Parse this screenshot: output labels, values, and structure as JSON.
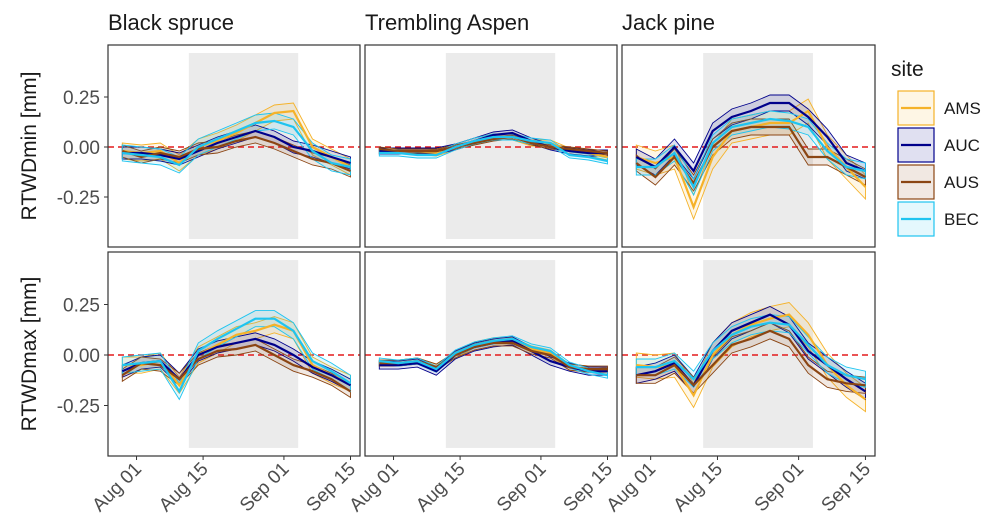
{
  "chart_data": {
    "type": "line",
    "columns": [
      "Black spruce",
      "Trembling Aspen",
      "Jack pine"
    ],
    "rows": [
      "RTWDmin [mm]",
      "RTWDmax [mm]"
    ],
    "x": [
      "Jul 29",
      "Aug 02",
      "Aug 06",
      "Aug 10",
      "Aug 14",
      "Aug 18",
      "Aug 22",
      "Aug 26",
      "Aug 30",
      "Sep 03",
      "Sep 07",
      "Sep 11",
      "Sep 15"
    ],
    "xlim": [
      "Jul 26",
      "Sep 17"
    ],
    "xticks": [
      "Aug 01",
      "Aug 15",
      "Sep 01",
      "Sep 15"
    ],
    "ylim": [
      -0.5,
      0.51
    ],
    "yticks": [
      0.25,
      {
        "value": 0,
        "label": "0.00"
      },
      -0.25
    ],
    "shade": {
      "x": [
        "Aug 12",
        "Sep 04"
      ],
      "y": [
        -0.46,
        0.47
      ],
      "color": "#ebebeb"
    },
    "hline": 0,
    "hline_color": "#e31a1c",
    "legend_title": "site",
    "legend": [
      {
        "name": "AMS",
        "color": "#f5b229"
      },
      {
        "name": "AUC",
        "color": "#00008b"
      },
      {
        "name": "AUS",
        "color": "#8b4513"
      },
      {
        "name": "BEC",
        "color": "#1ec4f0"
      }
    ],
    "panels": [
      {
        "row": 0,
        "col": 0,
        "series": [
          {
            "values": [
              -0.02,
              -0.03,
              -0.02,
              -0.08,
              0.0,
              0.03,
              0.07,
              0.12,
              0.17,
              0.18,
              0.0,
              -0.05,
              -0.1
            ],
            "error": [
              0.04,
              0.04,
              0.04,
              0.04,
              0.04,
              0.04,
              0.04,
              0.04,
              0.04,
              0.04,
              0.04,
              0.04,
              0.04
            ]
          },
          {
            "values": [
              -0.03,
              -0.03,
              -0.04,
              -0.06,
              -0.02,
              0.02,
              0.05,
              0.08,
              0.05,
              0.0,
              -0.02,
              -0.05,
              -0.08
            ],
            "error": [
              0.03,
              0.03,
              0.03,
              0.03,
              0.03,
              0.03,
              0.03,
              0.03,
              0.03,
              0.03,
              0.03,
              0.03,
              0.03
            ]
          },
          {
            "values": [
              -0.02,
              -0.05,
              -0.03,
              -0.05,
              -0.01,
              0.0,
              0.03,
              0.05,
              0.02,
              -0.02,
              -0.06,
              -0.08,
              -0.12
            ],
            "error": [
              0.03,
              0.03,
              0.03,
              0.03,
              0.03,
              0.03,
              0.03,
              0.03,
              0.03,
              0.03,
              0.03,
              0.03,
              0.03
            ]
          },
          {
            "values": [
              -0.03,
              -0.04,
              -0.05,
              -0.09,
              0.0,
              0.04,
              0.08,
              0.12,
              0.13,
              0.1,
              -0.02,
              -0.08,
              -0.1
            ],
            "error": [
              0.04,
              0.04,
              0.04,
              0.04,
              0.04,
              0.04,
              0.04,
              0.04,
              0.04,
              0.04,
              0.04,
              0.04,
              0.04
            ]
          }
        ]
      },
      {
        "row": 0,
        "col": 1,
        "series": [
          {
            "values": [
              -0.02,
              -0.02,
              -0.02,
              -0.03,
              0.0,
              0.03,
              0.05,
              0.05,
              0.02,
              0.02,
              -0.02,
              -0.03,
              -0.05
            ],
            "error": [
              0.015,
              0.015,
              0.015,
              0.015,
              0.015,
              0.015,
              0.015,
              0.015,
              0.015,
              0.015,
              0.015,
              0.015,
              0.015
            ]
          },
          {
            "values": [
              -0.02,
              -0.02,
              -0.02,
              -0.02,
              0.0,
              0.03,
              0.06,
              0.07,
              0.03,
              0.0,
              -0.02,
              -0.03,
              -0.03
            ],
            "error": [
              0.015,
              0.015,
              0.015,
              0.015,
              0.015,
              0.015,
              0.015,
              0.015,
              0.015,
              0.015,
              0.015,
              0.015,
              0.015
            ]
          },
          {
            "values": [
              -0.01,
              -0.02,
              -0.02,
              -0.02,
              0.0,
              0.02,
              0.04,
              0.05,
              0.02,
              0.0,
              -0.01,
              -0.02,
              -0.03
            ],
            "error": [
              0.01,
              0.01,
              0.01,
              0.01,
              0.01,
              0.01,
              0.01,
              0.01,
              0.01,
              0.01,
              0.01,
              0.01,
              0.01
            ]
          },
          {
            "values": [
              -0.03,
              -0.03,
              -0.04,
              -0.04,
              0.0,
              0.03,
              0.05,
              0.05,
              0.03,
              0.02,
              -0.04,
              -0.05,
              -0.07
            ],
            "error": [
              0.015,
              0.015,
              0.015,
              0.015,
              0.015,
              0.015,
              0.015,
              0.015,
              0.015,
              0.015,
              0.015,
              0.015,
              0.015
            ]
          }
        ]
      },
      {
        "row": 0,
        "col": 2,
        "series": [
          {
            "values": [
              -0.05,
              -0.08,
              -0.05,
              -0.3,
              -0.05,
              0.08,
              0.1,
              0.12,
              0.12,
              0.18,
              0.0,
              -0.1,
              -0.2
            ],
            "error": [
              0.06,
              0.06,
              0.06,
              0.06,
              0.06,
              0.06,
              0.06,
              0.06,
              0.06,
              0.06,
              0.06,
              0.06,
              0.06
            ]
          },
          {
            "values": [
              -0.05,
              -0.1,
              0.0,
              -0.12,
              0.08,
              0.15,
              0.18,
              0.22,
              0.22,
              0.15,
              0.05,
              -0.08,
              -0.12
            ],
            "error": [
              0.04,
              0.04,
              0.04,
              0.04,
              0.04,
              0.04,
              0.04,
              0.04,
              0.04,
              0.04,
              0.04,
              0.04,
              0.04
            ]
          },
          {
            "values": [
              -0.08,
              -0.15,
              -0.05,
              -0.18,
              0.0,
              0.08,
              0.1,
              0.1,
              0.1,
              -0.05,
              -0.05,
              -0.1,
              -0.15
            ],
            "error": [
              0.04,
              0.04,
              0.04,
              0.04,
              0.04,
              0.04,
              0.04,
              0.04,
              0.04,
              0.04,
              0.04,
              0.04,
              0.04
            ]
          },
          {
            "values": [
              -0.1,
              -0.1,
              -0.03,
              -0.2,
              0.02,
              0.1,
              0.12,
              0.14,
              0.13,
              0.1,
              -0.02,
              -0.1,
              -0.12
            ],
            "error": [
              0.04,
              0.04,
              0.04,
              0.04,
              0.04,
              0.04,
              0.04,
              0.04,
              0.04,
              0.04,
              0.04,
              0.04,
              0.04
            ]
          }
        ]
      },
      {
        "row": 1,
        "col": 0,
        "series": [
          {
            "values": [
              -0.05,
              -0.05,
              -0.03,
              -0.15,
              0.0,
              0.05,
              0.1,
              0.12,
              0.15,
              0.12,
              -0.05,
              -0.1,
              -0.14
            ],
            "error": [
              0.04,
              0.04,
              0.04,
              0.04,
              0.04,
              0.04,
              0.04,
              0.04,
              0.04,
              0.04,
              0.04,
              0.04,
              0.04
            ]
          },
          {
            "values": [
              -0.08,
              -0.04,
              -0.03,
              -0.12,
              0.0,
              0.04,
              0.06,
              0.08,
              0.05,
              0.0,
              -0.06,
              -0.1,
              -0.15
            ],
            "error": [
              0.03,
              0.03,
              0.03,
              0.03,
              0.03,
              0.03,
              0.03,
              0.03,
              0.03,
              0.03,
              0.03,
              0.03,
              0.03
            ]
          },
          {
            "values": [
              -0.1,
              -0.04,
              -0.05,
              -0.12,
              -0.02,
              0.02,
              0.03,
              0.05,
              0.0,
              -0.05,
              -0.08,
              -0.12,
              -0.18
            ],
            "error": [
              0.03,
              0.03,
              0.03,
              0.03,
              0.03,
              0.03,
              0.03,
              0.03,
              0.03,
              0.03,
              0.03,
              0.03,
              0.03
            ]
          },
          {
            "values": [
              -0.05,
              -0.04,
              -0.03,
              -0.18,
              0.02,
              0.08,
              0.13,
              0.18,
              0.18,
              0.12,
              -0.03,
              -0.08,
              -0.14
            ],
            "error": [
              0.04,
              0.04,
              0.04,
              0.04,
              0.04,
              0.04,
              0.04,
              0.04,
              0.04,
              0.04,
              0.04,
              0.04,
              0.04
            ]
          }
        ]
      },
      {
        "row": 1,
        "col": 1,
        "series": [
          {
            "values": [
              -0.04,
              -0.04,
              -0.03,
              -0.06,
              0.0,
              0.05,
              0.07,
              0.07,
              0.03,
              0.01,
              -0.06,
              -0.07,
              -0.08
            ],
            "error": [
              0.015,
              0.015,
              0.015,
              0.015,
              0.015,
              0.015,
              0.015,
              0.015,
              0.015,
              0.015,
              0.015,
              0.015,
              0.015
            ]
          },
          {
            "values": [
              -0.05,
              -0.05,
              -0.04,
              -0.08,
              0.0,
              0.04,
              0.06,
              0.07,
              0.02,
              -0.03,
              -0.06,
              -0.08,
              -0.08
            ],
            "error": [
              0.02,
              0.02,
              0.02,
              0.02,
              0.02,
              0.02,
              0.02,
              0.02,
              0.02,
              0.02,
              0.02,
              0.02,
              0.02
            ]
          },
          {
            "values": [
              -0.04,
              -0.04,
              -0.03,
              -0.06,
              0.0,
              0.04,
              0.06,
              0.06,
              0.02,
              0.0,
              -0.06,
              -0.07,
              -0.07
            ],
            "error": [
              0.015,
              0.015,
              0.015,
              0.015,
              0.015,
              0.015,
              0.015,
              0.015,
              0.015,
              0.015,
              0.015,
              0.015,
              0.015
            ]
          },
          {
            "values": [
              -0.03,
              -0.04,
              -0.03,
              -0.07,
              0.01,
              0.05,
              0.07,
              0.08,
              0.04,
              0.02,
              -0.05,
              -0.08,
              -0.1
            ],
            "error": [
              0.015,
              0.015,
              0.015,
              0.015,
              0.015,
              0.015,
              0.015,
              0.015,
              0.015,
              0.015,
              0.015,
              0.015,
              0.015
            ]
          }
        ]
      },
      {
        "row": 1,
        "col": 2,
        "series": [
          {
            "values": [
              -0.05,
              -0.06,
              -0.05,
              -0.2,
              0.0,
              0.1,
              0.15,
              0.18,
              0.2,
              0.1,
              -0.05,
              -0.15,
              -0.22
            ],
            "error": [
              0.06,
              0.06,
              0.06,
              0.06,
              0.06,
              0.06,
              0.06,
              0.06,
              0.06,
              0.06,
              0.06,
              0.06,
              0.06
            ]
          },
          {
            "values": [
              -0.1,
              -0.08,
              -0.04,
              -0.15,
              0.02,
              0.12,
              0.16,
              0.2,
              0.15,
              0.02,
              -0.05,
              -0.12,
              -0.18
            ],
            "error": [
              0.04,
              0.04,
              0.04,
              0.04,
              0.04,
              0.04,
              0.04,
              0.04,
              0.04,
              0.04,
              0.04,
              0.04,
              0.04
            ]
          },
          {
            "values": [
              -0.1,
              -0.1,
              -0.05,
              -0.15,
              -0.05,
              0.05,
              0.08,
              0.12,
              0.08,
              -0.05,
              -0.12,
              -0.14,
              -0.15
            ],
            "error": [
              0.04,
              0.04,
              0.04,
              0.04,
              0.04,
              0.04,
              0.04,
              0.04,
              0.04,
              0.04,
              0.04,
              0.04,
              0.04
            ]
          },
          {
            "values": [
              -0.06,
              -0.06,
              -0.03,
              -0.12,
              0.02,
              0.1,
              0.14,
              0.16,
              0.15,
              0.05,
              -0.05,
              -0.1,
              -0.12
            ],
            "error": [
              0.04,
              0.04,
              0.04,
              0.04,
              0.04,
              0.04,
              0.04,
              0.04,
              0.04,
              0.04,
              0.04,
              0.04,
              0.04
            ]
          }
        ]
      }
    ]
  }
}
